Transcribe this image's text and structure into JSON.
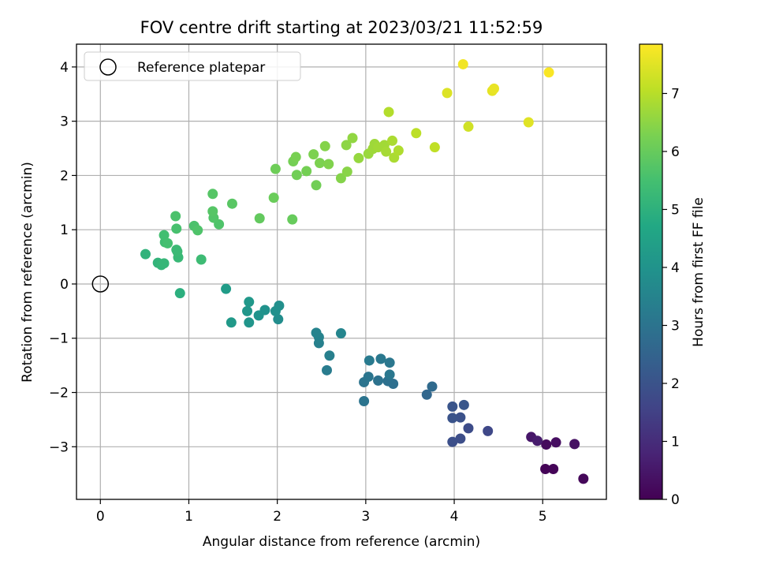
{
  "chart_data": {
    "type": "scatter",
    "title": "FOV centre drift starting at 2023/03/21 11:52:59",
    "xlabel": "Angular distance from reference (arcmin)",
    "ylabel": "Rotation from reference (arcmin)",
    "xlim": [
      -0.27,
      5.72
    ],
    "ylim": [
      -3.97,
      4.42
    ],
    "xticks": [
      0,
      1,
      2,
      3,
      4,
      5
    ],
    "yticks": [
      -3,
      -2,
      -1,
      0,
      1,
      2,
      3,
      4
    ],
    "xtick_labels": [
      "0",
      "1",
      "2",
      "3",
      "4",
      "5"
    ],
    "ytick_labels": [
      "−3",
      "−2",
      "−1",
      "0",
      "1",
      "2",
      "3",
      "4"
    ],
    "grid": true,
    "colormap": "viridis",
    "colorbar": {
      "label": "Hours from first FF file",
      "range": [
        0,
        7.85
      ],
      "ticks": [
        0,
        1,
        2,
        3,
        4,
        5,
        6,
        7
      ],
      "tick_labels": [
        "0",
        "1",
        "2",
        "3",
        "4",
        "5",
        "6",
        "7"
      ]
    },
    "legend": {
      "location": "top-left",
      "label": "Reference platepar"
    },
    "reference_point": {
      "x": 0,
      "y": 0
    },
    "points": [
      {
        "x": 5.03,
        "y": -3.41,
        "h": 0.05
      },
      {
        "x": 5.12,
        "y": -3.41,
        "h": 0.1
      },
      {
        "x": 5.46,
        "y": -3.59,
        "h": 0.15
      },
      {
        "x": 5.04,
        "y": -2.96,
        "h": 0.2
      },
      {
        "x": 5.15,
        "y": -2.92,
        "h": 0.3
      },
      {
        "x": 5.36,
        "y": -2.95,
        "h": 0.35
      },
      {
        "x": 4.87,
        "y": -2.82,
        "h": 0.5
      },
      {
        "x": 4.94,
        "y": -2.89,
        "h": 0.6
      },
      {
        "x": 4.38,
        "y": -2.71,
        "h": 1.7
      },
      {
        "x": 4.16,
        "y": -2.66,
        "h": 1.8
      },
      {
        "x": 4.07,
        "y": -2.85,
        "h": 1.85
      },
      {
        "x": 3.98,
        "y": -2.91,
        "h": 1.9
      },
      {
        "x": 4.07,
        "y": -2.46,
        "h": 1.95
      },
      {
        "x": 3.98,
        "y": -2.47,
        "h": 2.0
      },
      {
        "x": 3.98,
        "y": -2.26,
        "h": 2.05
      },
      {
        "x": 4.11,
        "y": -2.23,
        "h": 2.1
      },
      {
        "x": 3.69,
        "y": -2.04,
        "h": 2.6
      },
      {
        "x": 3.75,
        "y": -1.89,
        "h": 2.7
      },
      {
        "x": 3.31,
        "y": -1.84,
        "h": 2.85
      },
      {
        "x": 3.25,
        "y": -1.79,
        "h": 2.9
      },
      {
        "x": 3.14,
        "y": -1.78,
        "h": 2.95
      },
      {
        "x": 2.98,
        "y": -1.81,
        "h": 3.0
      },
      {
        "x": 3.03,
        "y": -1.71,
        "h": 3.05
      },
      {
        "x": 3.27,
        "y": -1.67,
        "h": 3.1
      },
      {
        "x": 2.98,
        "y": -2.16,
        "h": 3.0
      },
      {
        "x": 3.04,
        "y": -1.41,
        "h": 3.2
      },
      {
        "x": 3.17,
        "y": -1.38,
        "h": 3.15
      },
      {
        "x": 3.27,
        "y": -1.45,
        "h": 3.1
      },
      {
        "x": 2.56,
        "y": -1.59,
        "h": 3.25
      },
      {
        "x": 2.59,
        "y": -1.32,
        "h": 3.35
      },
      {
        "x": 2.47,
        "y": -1.09,
        "h": 3.4
      },
      {
        "x": 2.47,
        "y": -0.98,
        "h": 3.45
      },
      {
        "x": 2.44,
        "y": -0.9,
        "h": 3.5
      },
      {
        "x": 2.72,
        "y": -0.91,
        "h": 3.55
      },
      {
        "x": 2.01,
        "y": -0.65,
        "h": 3.8
      },
      {
        "x": 2.02,
        "y": -0.4,
        "h": 3.85
      },
      {
        "x": 1.98,
        "y": -0.5,
        "h": 3.9
      },
      {
        "x": 1.86,
        "y": -0.48,
        "h": 3.95
      },
      {
        "x": 1.79,
        "y": -0.58,
        "h": 4.0
      },
      {
        "x": 1.68,
        "y": -0.71,
        "h": 4.05
      },
      {
        "x": 1.66,
        "y": -0.5,
        "h": 4.1
      },
      {
        "x": 1.68,
        "y": -0.33,
        "h": 4.15
      },
      {
        "x": 1.48,
        "y": -0.71,
        "h": 4.2
      },
      {
        "x": 1.42,
        "y": -0.09,
        "h": 4.3
      },
      {
        "x": 0.9,
        "y": -0.17,
        "h": 4.95
      },
      {
        "x": 0.51,
        "y": 0.55,
        "h": 5.05
      },
      {
        "x": 0.65,
        "y": 0.39,
        "h": 5.1
      },
      {
        "x": 0.69,
        "y": 0.35,
        "h": 5.15
      },
      {
        "x": 0.72,
        "y": 0.38,
        "h": 5.2
      },
      {
        "x": 0.88,
        "y": 0.49,
        "h": 5.25
      },
      {
        "x": 0.87,
        "y": 0.6,
        "h": 5.3
      },
      {
        "x": 1.14,
        "y": 0.45,
        "h": 5.35
      },
      {
        "x": 0.86,
        "y": 0.63,
        "h": 5.3
      },
      {
        "x": 0.73,
        "y": 0.77,
        "h": 5.4
      },
      {
        "x": 0.72,
        "y": 0.9,
        "h": 5.45
      },
      {
        "x": 0.76,
        "y": 0.75,
        "h": 5.5
      },
      {
        "x": 0.86,
        "y": 1.02,
        "h": 5.55
      },
      {
        "x": 0.85,
        "y": 1.25,
        "h": 5.6
      },
      {
        "x": 1.06,
        "y": 1.07,
        "h": 5.6
      },
      {
        "x": 1.1,
        "y": 0.99,
        "h": 5.65
      },
      {
        "x": 1.34,
        "y": 1.1,
        "h": 5.65
      },
      {
        "x": 1.28,
        "y": 1.22,
        "h": 5.7
      },
      {
        "x": 1.27,
        "y": 1.34,
        "h": 5.75
      },
      {
        "x": 1.49,
        "y": 1.48,
        "h": 5.8
      },
      {
        "x": 1.27,
        "y": 1.66,
        "h": 5.75
      },
      {
        "x": 1.8,
        "y": 1.21,
        "h": 5.95
      },
      {
        "x": 2.17,
        "y": 1.19,
        "h": 6.0
      },
      {
        "x": 1.96,
        "y": 1.59,
        "h": 6.05
      },
      {
        "x": 2.44,
        "y": 1.82,
        "h": 6.15
      },
      {
        "x": 1.98,
        "y": 2.12,
        "h": 6.1
      },
      {
        "x": 2.22,
        "y": 2.01,
        "h": 6.15
      },
      {
        "x": 2.33,
        "y": 2.08,
        "h": 6.2
      },
      {
        "x": 2.18,
        "y": 2.26,
        "h": 6.2
      },
      {
        "x": 2.21,
        "y": 2.34,
        "h": 6.25
      },
      {
        "x": 2.41,
        "y": 2.39,
        "h": 6.3
      },
      {
        "x": 2.48,
        "y": 2.23,
        "h": 6.3
      },
      {
        "x": 2.58,
        "y": 2.21,
        "h": 6.35
      },
      {
        "x": 2.54,
        "y": 2.54,
        "h": 6.4
      },
      {
        "x": 2.72,
        "y": 1.95,
        "h": 6.4
      },
      {
        "x": 2.79,
        "y": 2.07,
        "h": 6.45
      },
      {
        "x": 2.78,
        "y": 2.56,
        "h": 6.5
      },
      {
        "x": 2.85,
        "y": 2.69,
        "h": 6.55
      },
      {
        "x": 2.92,
        "y": 2.32,
        "h": 6.6
      },
      {
        "x": 3.03,
        "y": 2.4,
        "h": 6.65
      },
      {
        "x": 3.08,
        "y": 2.49,
        "h": 6.7
      },
      {
        "x": 3.1,
        "y": 2.58,
        "h": 6.7
      },
      {
        "x": 3.14,
        "y": 2.52,
        "h": 6.75
      },
      {
        "x": 3.21,
        "y": 2.56,
        "h": 6.75
      },
      {
        "x": 3.23,
        "y": 2.44,
        "h": 6.8
      },
      {
        "x": 3.3,
        "y": 2.64,
        "h": 6.85
      },
      {
        "x": 3.32,
        "y": 2.33,
        "h": 6.85
      },
      {
        "x": 3.37,
        "y": 2.46,
        "h": 6.9
      },
      {
        "x": 3.26,
        "y": 3.17,
        "h": 6.95
      },
      {
        "x": 3.57,
        "y": 2.78,
        "h": 7.05
      },
      {
        "x": 3.78,
        "y": 2.52,
        "h": 7.1
      },
      {
        "x": 4.16,
        "y": 2.9,
        "h": 7.3
      },
      {
        "x": 3.92,
        "y": 3.52,
        "h": 7.45
      },
      {
        "x": 4.1,
        "y": 4.05,
        "h": 7.7
      },
      {
        "x": 4.43,
        "y": 3.56,
        "h": 7.55
      },
      {
        "x": 4.45,
        "y": 3.6,
        "h": 7.6
      },
      {
        "x": 4.84,
        "y": 2.98,
        "h": 7.5
      },
      {
        "x": 5.07,
        "y": 3.9,
        "h": 7.8
      }
    ]
  }
}
